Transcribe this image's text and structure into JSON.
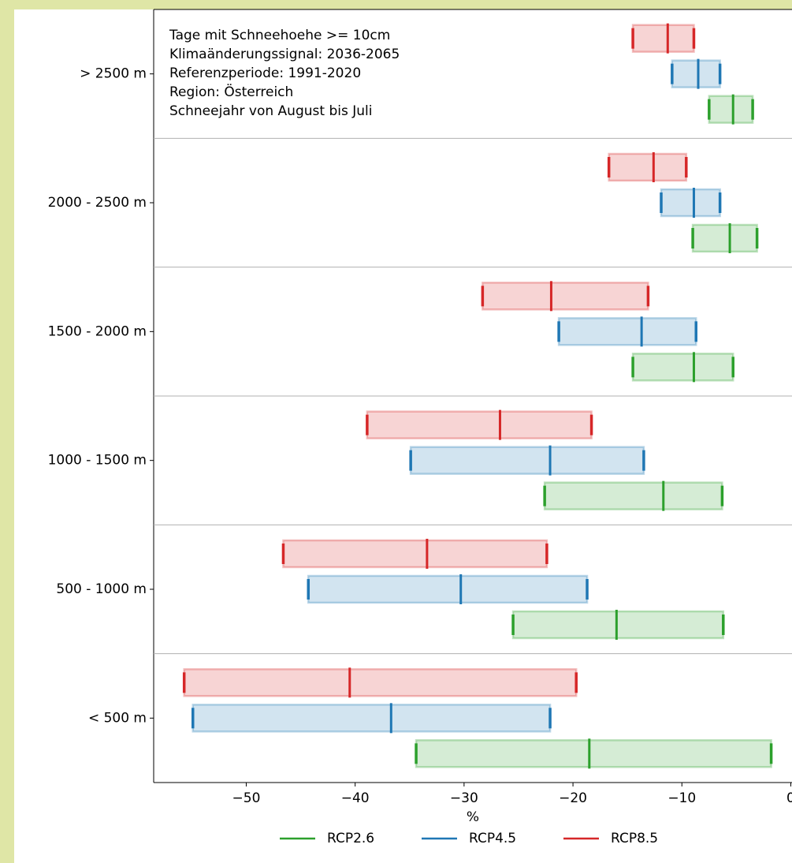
{
  "chart_data": {
    "type": "range_bar",
    "annotation": [
      "Tage mit Schneehoehe >= 10cm",
      "Klimaänderungssignal: 2036-2065",
      "Referenzperiode: 1991-2020",
      "Region: Österreich",
      "Schneejahr von August bis Juli"
    ],
    "x_label": "%",
    "categories": [
      "> 2500 m",
      "2000 - 2500 m",
      "1500 - 2000 m",
      "1000 - 1500 m",
      "500 - 1000 m",
      "< 500 m"
    ],
    "series": [
      {
        "name": "RCP8.5",
        "color": "#d62728",
        "min": [
          -14.5,
          -16.7,
          -28.3,
          -38.9,
          -46.6,
          -55.7
        ],
        "median": [
          -11.3,
          -12.6,
          -22.0,
          -26.7,
          -33.4,
          -40.5
        ],
        "max": [
          -8.9,
          -9.6,
          -13.1,
          -18.3,
          -22.4,
          -19.7
        ]
      },
      {
        "name": "RCP4.5",
        "color": "#1f77b4",
        "min": [
          -10.9,
          -11.9,
          -21.3,
          -34.9,
          -44.3,
          -54.9
        ],
        "median": [
          -8.5,
          -8.9,
          -13.7,
          -22.1,
          -30.3,
          -36.7
        ],
        "max": [
          -6.5,
          -6.5,
          -8.7,
          -13.5,
          -18.7,
          -22.1
        ]
      },
      {
        "name": "RCP2.6",
        "color": "#2ca02c",
        "min": [
          -7.5,
          -9.0,
          -14.5,
          -22.6,
          -25.5,
          -34.4
        ],
        "median": [
          -5.3,
          -5.6,
          -8.9,
          -11.7,
          -16.0,
          -18.5
        ],
        "max": [
          -3.5,
          -3.1,
          -5.3,
          -6.3,
          -6.2,
          -1.8
        ]
      }
    ],
    "legend_order": [
      2,
      1,
      0
    ],
    "xlim": [
      -58.5,
      0.3
    ],
    "xticks": [
      {
        "value": -50,
        "label": "−50"
      },
      {
        "value": -40,
        "label": "−40"
      },
      {
        "value": -30,
        "label": "−30"
      },
      {
        "value": -20,
        "label": "−20"
      },
      {
        "value": -10,
        "label": "−10"
      },
      0
    ]
  }
}
